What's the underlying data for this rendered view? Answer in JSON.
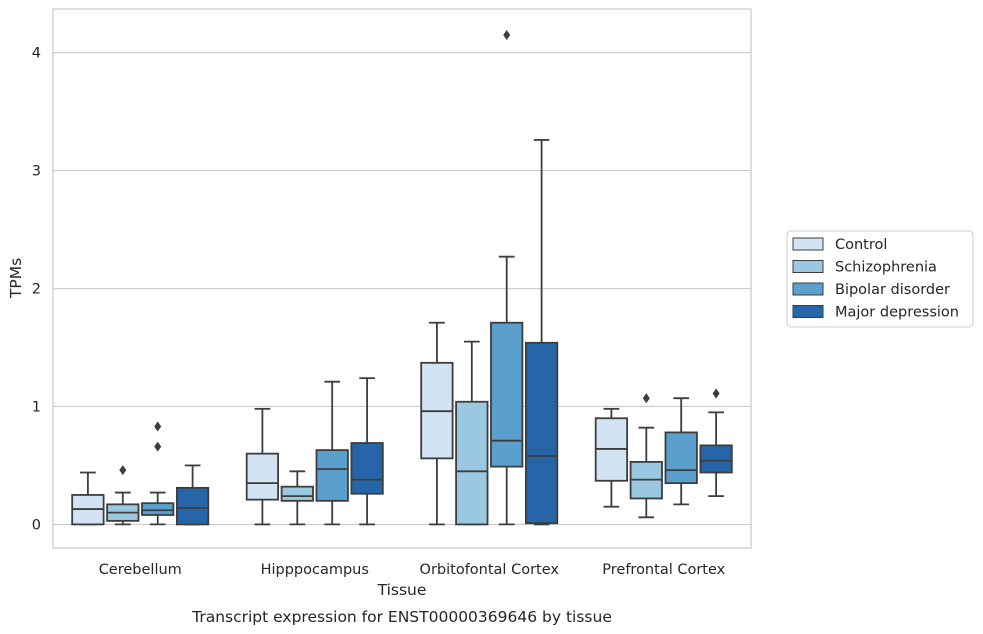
{
  "chart_data": {
    "type": "box",
    "title": "Transcript expression for ENST00000369646 by tissue",
    "xlabel": "Tissue",
    "ylabel": "TPMs",
    "ylim": [
      -0.2,
      4.37
    ],
    "yticks": [
      0,
      1,
      2,
      3,
      4
    ],
    "grid": "horizontal",
    "legend_position": "right",
    "categories": [
      "Cerebellum",
      "Hipppocampus",
      "Orbitofontal Cortex",
      "Prefrontal Cortex"
    ],
    "series": [
      {
        "name": "Control",
        "color": "#d2e3f3",
        "boxes": [
          {
            "whislo": 0.0,
            "q1": 0.0,
            "med": 0.13,
            "q3": 0.25,
            "whishi": 0.44,
            "fliers": []
          },
          {
            "whislo": 0.0,
            "q1": 0.21,
            "med": 0.35,
            "q3": 0.6,
            "whishi": 0.98,
            "fliers": []
          },
          {
            "whislo": 0.0,
            "q1": 0.56,
            "med": 0.96,
            "q3": 1.37,
            "whishi": 1.71,
            "fliers": []
          },
          {
            "whislo": 0.15,
            "q1": 0.37,
            "med": 0.64,
            "q3": 0.9,
            "whishi": 0.98,
            "fliers": []
          }
        ]
      },
      {
        "name": "Schizophrenia",
        "color": "#9ac8e0",
        "boxes": [
          {
            "whislo": 0.0,
            "q1": 0.03,
            "med": 0.1,
            "q3": 0.17,
            "whishi": 0.27,
            "fliers": [
              0.46
            ]
          },
          {
            "whislo": 0.0,
            "q1": 0.2,
            "med": 0.24,
            "q3": 0.32,
            "whishi": 0.45,
            "fliers": []
          },
          {
            "whislo": 0.0,
            "q1": 0.0,
            "med": 0.45,
            "q3": 1.04,
            "whishi": 1.55,
            "fliers": []
          },
          {
            "whislo": 0.06,
            "q1": 0.22,
            "med": 0.38,
            "q3": 0.53,
            "whishi": 0.82,
            "fliers": [
              1.07
            ]
          }
        ]
      },
      {
        "name": "Bipolar disorder",
        "color": "#5a9fcd",
        "boxes": [
          {
            "whislo": 0.0,
            "q1": 0.08,
            "med": 0.12,
            "q3": 0.18,
            "whishi": 0.27,
            "fliers": [
              0.66,
              0.83
            ]
          },
          {
            "whislo": 0.0,
            "q1": 0.2,
            "med": 0.47,
            "q3": 0.63,
            "whishi": 1.21,
            "fliers": []
          },
          {
            "whislo": 0.0,
            "q1": 0.49,
            "med": 0.71,
            "q3": 1.71,
            "whishi": 2.27,
            "fliers": [
              4.15
            ]
          },
          {
            "whislo": 0.17,
            "q1": 0.35,
            "med": 0.46,
            "q3": 0.78,
            "whishi": 1.07,
            "fliers": []
          }
        ]
      },
      {
        "name": "Major depression",
        "color": "#2666a8",
        "boxes": [
          {
            "whislo": 0.0,
            "q1": 0.0,
            "med": 0.14,
            "q3": 0.31,
            "whishi": 0.5,
            "fliers": []
          },
          {
            "whislo": 0.0,
            "q1": 0.26,
            "med": 0.38,
            "q3": 0.69,
            "whishi": 1.24,
            "fliers": []
          },
          {
            "whislo": 0.0,
            "q1": 0.01,
            "med": 0.58,
            "q3": 1.54,
            "whishi": 3.26,
            "fliers": []
          },
          {
            "whislo": 0.24,
            "q1": 0.44,
            "med": 0.54,
            "q3": 0.67,
            "whishi": 0.95,
            "fliers": [
              1.11
            ]
          }
        ]
      }
    ]
  }
}
